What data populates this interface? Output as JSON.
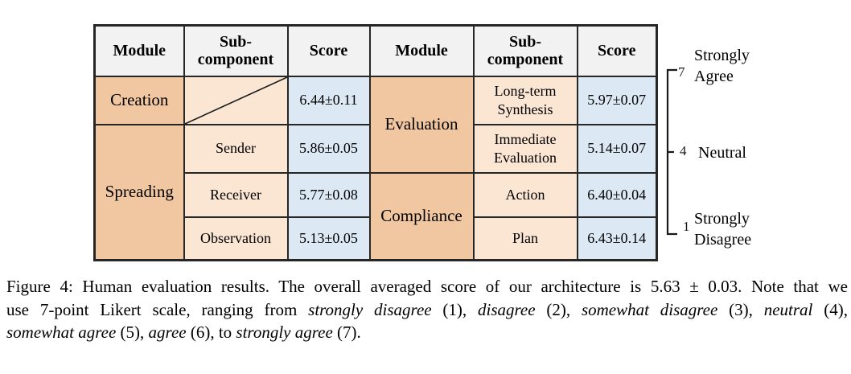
{
  "table": {
    "headers": [
      "Module",
      "Sub-component",
      "Score",
      "Module",
      "Sub-component",
      "Score"
    ],
    "modules": [
      {
        "name": "Creation",
        "subcomponents": [
          {
            "name": "",
            "score": "6.44±0.11"
          }
        ]
      },
      {
        "name": "Spreading",
        "subcomponents": [
          {
            "name": "Sender",
            "score": "5.86±0.05"
          },
          {
            "name": "Receiver",
            "score": "5.77±0.08"
          },
          {
            "name": "Observation",
            "score": "5.13±0.05"
          }
        ]
      },
      {
        "name": "Evaluation",
        "subcomponents": [
          {
            "name": "Long-term Synthesis",
            "score": "5.97±0.07"
          },
          {
            "name": "Immediate Evaluation",
            "score": "5.14±0.07"
          }
        ]
      },
      {
        "name": "Compliance",
        "subcomponents": [
          {
            "name": "Action",
            "score": "6.40±0.04"
          },
          {
            "name": "Plan",
            "score": "6.43±0.14"
          }
        ]
      }
    ]
  },
  "scale": {
    "points": [
      {
        "value": "7",
        "label": "Strongly Agree"
      },
      {
        "value": "4",
        "label": "Neutral"
      },
      {
        "value": "1",
        "label": "Strongly Disagree"
      }
    ]
  },
  "caption": {
    "lines": [
      [
        {
          "text": "Figure 4: Human evaluation results. The overall averaged score of our architecture is 5.63 ± 0.03. Note that we"
        }
      ],
      [
        {
          "text": "use 7-point Likert scale, ranging from "
        },
        {
          "text": "strongly disagree",
          "italic": true
        },
        {
          "text": " (1), "
        },
        {
          "text": "disagree",
          "italic": true
        },
        {
          "text": " (2), "
        },
        {
          "text": "somewhat disagree",
          "italic": true
        },
        {
          "text": " (3), "
        },
        {
          "text": "neutral",
          "italic": true
        },
        {
          "text": " (4),"
        }
      ],
      [
        {
          "text": "somewhat agree",
          "italic": true
        },
        {
          "text": " (5), "
        },
        {
          "text": "agree",
          "italic": true
        },
        {
          "text": " (6), to "
        },
        {
          "text": "strongly agree",
          "italic": true
        },
        {
          "text": " (7)."
        }
      ]
    ]
  },
  "colors": {
    "module_cell": "#f1c7a1",
    "subcomponent_cell": "#fbe5d3",
    "score_cell": "#dce8f4",
    "header_cell": "#f2f2f2",
    "table_border": "#262626",
    "text": "#000000"
  }
}
